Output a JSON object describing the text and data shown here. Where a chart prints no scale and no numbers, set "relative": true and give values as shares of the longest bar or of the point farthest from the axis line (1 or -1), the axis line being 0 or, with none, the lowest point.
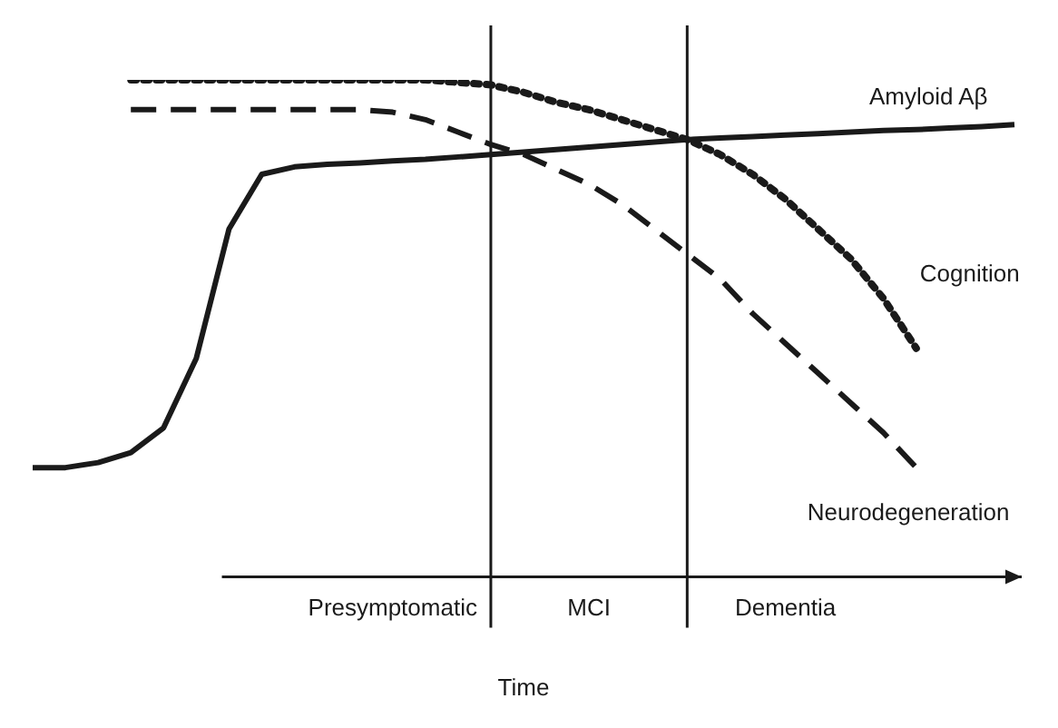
{
  "chart_data": {
    "type": "line",
    "relative": true,
    "xlabel": "Time",
    "legend": false,
    "marker": "none",
    "tick_labels": "x",
    "categories": [
      null,
      null,
      null,
      null,
      null,
      null,
      null,
      null,
      null,
      null,
      null,
      "Presymptomatic",
      null,
      null,
      null,
      null,
      null,
      "MCI",
      null,
      null,
      null,
      null,
      null,
      "Dementia",
      null,
      null,
      null,
      null,
      null,
      null,
      null
    ],
    "series": [
      {
        "name": "Amyloid Aβ",
        "color": "#1a1a1a",
        "line_style": "solid",
        "values": [
          0.22,
          0.22,
          0.23,
          0.25,
          0.3,
          0.44,
          0.7,
          0.81,
          0.825,
          0.83,
          0.833,
          0.837,
          0.84,
          0.845,
          0.85,
          0.855,
          0.86,
          0.865,
          0.87,
          0.875,
          0.88,
          0.883,
          0.886,
          0.889,
          0.892,
          0.895,
          0.898,
          0.9,
          0.903,
          0.906,
          0.91
        ]
      },
      {
        "name": "Cognition",
        "color": "#1a1a1a",
        "line_style": "dotted",
        "values": [
          null,
          null,
          null,
          1.0,
          1.0,
          1.0,
          1.0,
          1.0,
          1.0,
          1.0,
          1.0,
          1.0,
          1.0,
          0.995,
          0.99,
          0.975,
          0.955,
          0.94,
          0.92,
          0.9,
          0.88,
          0.85,
          0.81,
          0.76,
          0.7,
          0.64,
          0.56,
          0.46,
          null,
          null,
          null
        ]
      },
      {
        "name": "Neurodegeneration",
        "color": "#1a1a1a",
        "line_style": "dashed",
        "values": [
          null,
          null,
          null,
          0.94,
          0.94,
          0.94,
          0.94,
          0.94,
          0.94,
          0.94,
          0.94,
          0.935,
          0.92,
          0.895,
          0.87,
          0.85,
          0.82,
          0.79,
          0.75,
          0.7,
          0.65,
          0.6,
          0.53,
          0.47,
          0.41,
          0.35,
          0.29,
          0.22,
          null,
          null,
          null
        ]
      }
    ]
  }
}
